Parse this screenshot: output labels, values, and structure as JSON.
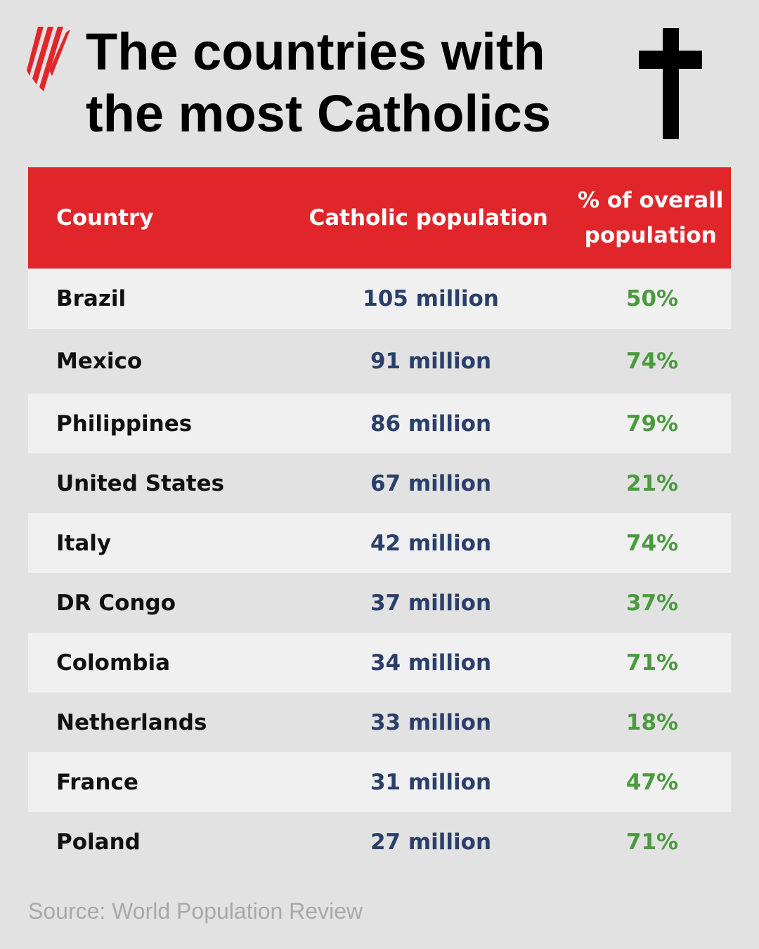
{
  "header": {
    "title_lines": [
      "The countries with",
      "the most Catholics"
    ]
  },
  "table": {
    "columns": [
      "Country",
      "Catholic population",
      "% of overall population"
    ],
    "rows": [
      [
        "Brazil",
        "105 million",
        "50%"
      ],
      [
        "Mexico",
        "91 million",
        "74%"
      ],
      [
        "Philippines",
        "86 million",
        "79%"
      ],
      [
        "United States",
        "67 million",
        "21%"
      ],
      [
        "Italy",
        "42 million",
        "74%"
      ],
      [
        "DR Congo",
        "37 million",
        "37%"
      ],
      [
        "Colombia",
        "34 million",
        "71%"
      ],
      [
        "Netherlands",
        "33 million",
        "18%"
      ],
      [
        "France",
        "31 million",
        "47%"
      ],
      [
        "Poland",
        "27 million",
        "71%"
      ]
    ]
  },
  "source": "Source: World Population Review"
}
